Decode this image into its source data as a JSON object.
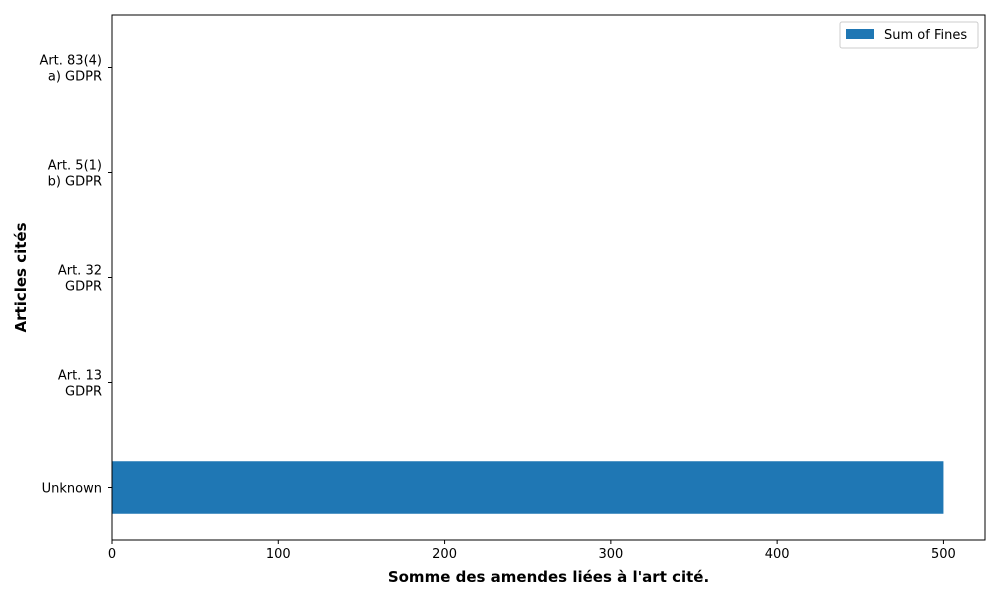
{
  "chart_data": {
    "type": "bar",
    "orientation": "horizontal",
    "categories": [
      [
        "Unknown"
      ],
      [
        "Art. 13",
        "GDPR"
      ],
      [
        "Art. 32",
        "GDPR"
      ],
      [
        "Art. 5(1)",
        "b) GDPR"
      ],
      [
        "Art. 83(4)",
        "a) GDPR"
      ]
    ],
    "series": [
      {
        "name": "Sum of Fines",
        "values": [
          500,
          0,
          0,
          0,
          0
        ],
        "color": "#1f77b4"
      }
    ],
    "xlabel": "Somme des amendes liées à l'art cité.",
    "ylabel": "Articles cités",
    "xlim": [
      0,
      525
    ],
    "xticks": [
      0,
      100,
      200,
      300,
      400,
      500
    ],
    "grid": false,
    "legend": "top-right"
  }
}
